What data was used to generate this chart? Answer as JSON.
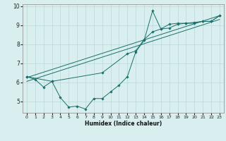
{
  "xlabel": "Humidex (Indice chaleur)",
  "xlim": [
    -0.5,
    23.5
  ],
  "ylim": [
    4.4,
    10.1
  ],
  "yticks": [
    5,
    6,
    7,
    8,
    9,
    10
  ],
  "xticks": [
    0,
    1,
    2,
    3,
    4,
    5,
    6,
    7,
    8,
    9,
    10,
    11,
    12,
    13,
    14,
    15,
    16,
    17,
    18,
    19,
    20,
    21,
    22,
    23
  ],
  "bg_color": "#d9eeee",
  "line_color": "#1a706a",
  "grid_color": "#b8d8d8",
  "lines": [
    {
      "x": [
        0,
        1,
        2,
        3,
        4,
        5,
        6,
        7,
        8,
        9,
        10,
        11,
        12,
        13,
        14,
        15,
        16,
        17,
        18,
        19,
        20,
        21,
        22,
        23
      ],
      "y": [
        6.3,
        6.15,
        5.75,
        6.05,
        5.2,
        4.7,
        4.75,
        4.6,
        5.15,
        5.15,
        5.5,
        5.85,
        6.3,
        7.6,
        8.2,
        9.75,
        8.8,
        8.85,
        9.05,
        9.1,
        9.1,
        9.2,
        9.2,
        9.5
      ],
      "markers": true
    },
    {
      "x": [
        0,
        3,
        9,
        12,
        13,
        14,
        15,
        16,
        17,
        18,
        19,
        20,
        21,
        22,
        23
      ],
      "y": [
        6.3,
        6.05,
        6.5,
        7.5,
        7.65,
        8.25,
        8.65,
        8.8,
        9.05,
        9.1,
        9.1,
        9.15,
        9.2,
        9.2,
        9.5
      ],
      "markers": true
    },
    {
      "x": [
        0,
        23
      ],
      "y": [
        6.05,
        9.3
      ],
      "markers": false
    },
    {
      "x": [
        0,
        23
      ],
      "y": [
        6.25,
        9.5
      ],
      "markers": false
    }
  ]
}
